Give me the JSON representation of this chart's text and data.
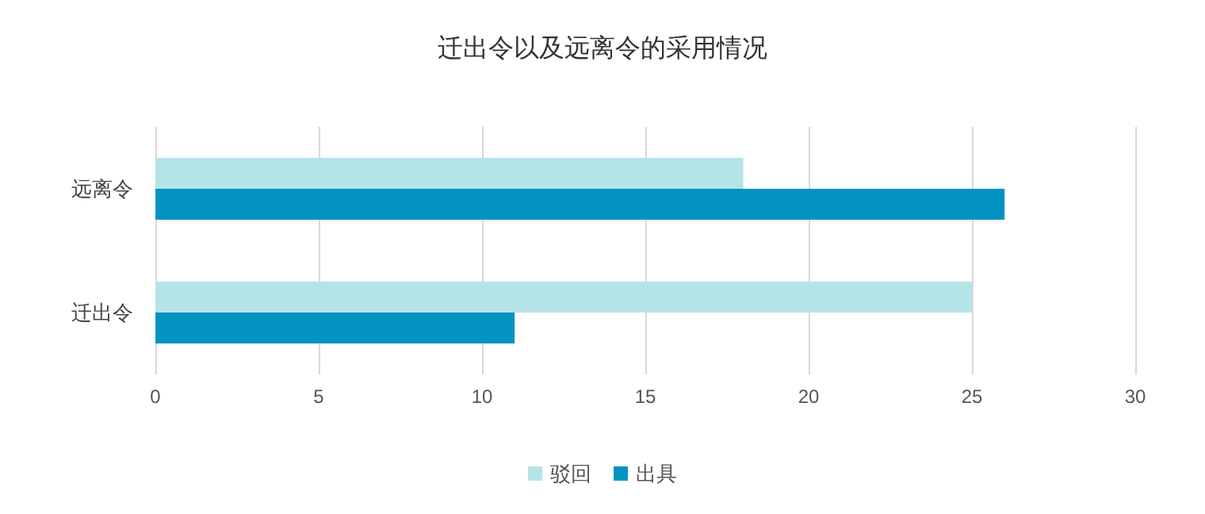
{
  "chart_data": {
    "type": "bar",
    "orientation": "horizontal",
    "title": "迁出令以及远离令的采用情况",
    "categories": [
      "远离令",
      "迁出令"
    ],
    "series": [
      {
        "name": "驳回",
        "color": "#b4e3e8",
        "values": [
          18,
          25
        ]
      },
      {
        "name": "出具",
        "color": "#0393c0",
        "values": [
          26,
          11
        ]
      }
    ],
    "xlim": [
      0,
      30
    ],
    "xticks": [
      0,
      5,
      10,
      15,
      20,
      25,
      30
    ],
    "grid": "x",
    "legend": "bottom"
  }
}
